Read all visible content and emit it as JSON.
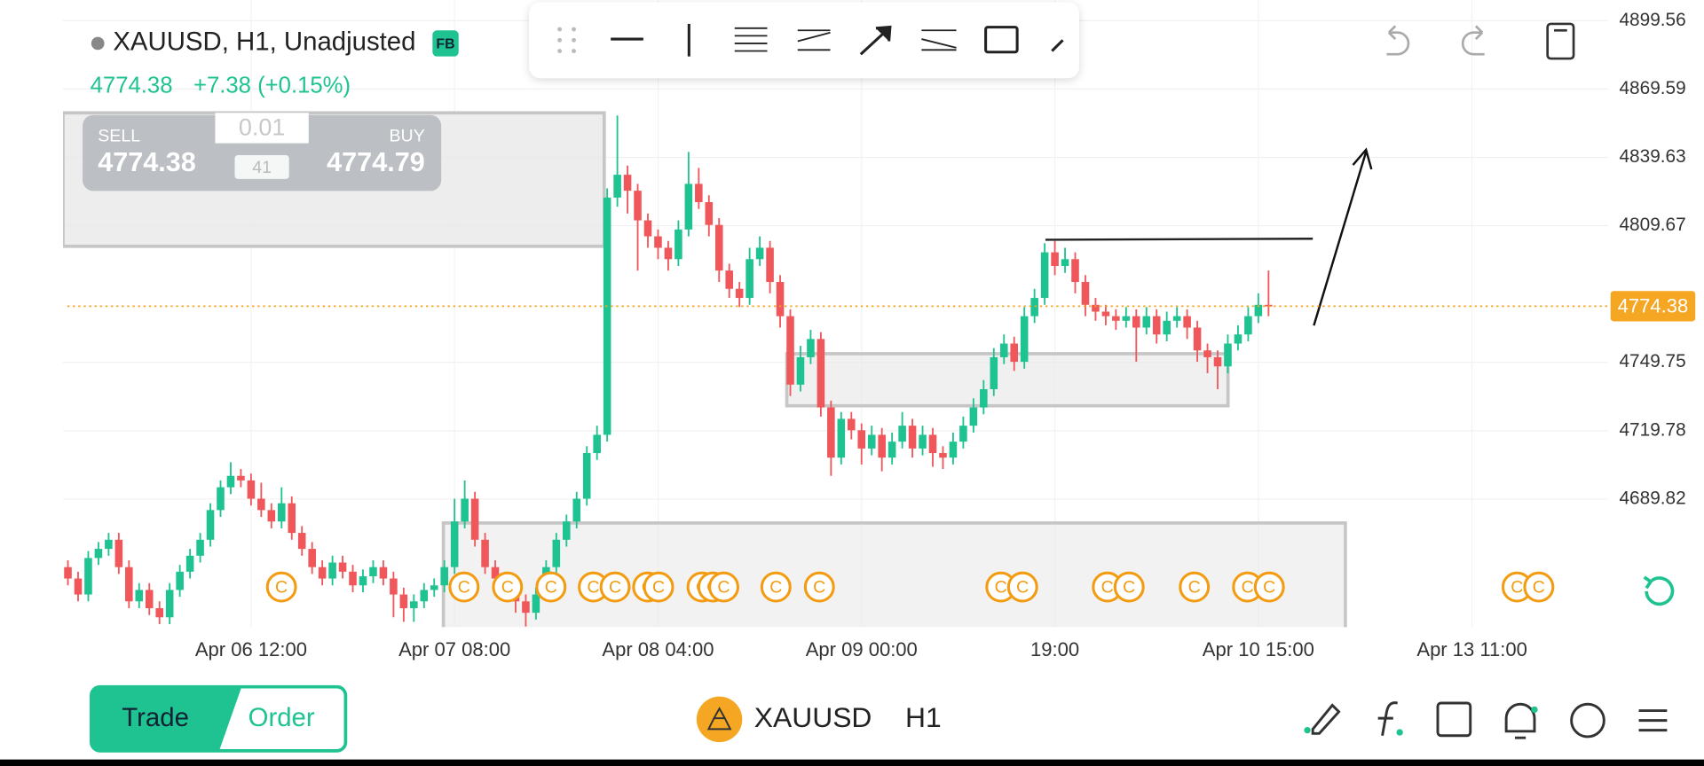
{
  "header": {
    "symbol_line": "XAUUSD, H1, Unadjusted",
    "badge": "FB",
    "price": "4774.38",
    "change": "+7.38 (+0.15%)"
  },
  "trade_panel": {
    "sell_label": "SELL",
    "sell_price": "4774.38",
    "volume": "0.01",
    "spread": "41",
    "buy_label": "BUY",
    "buy_price": "4774.79"
  },
  "chart_data": {
    "type": "candlestick",
    "candles": [
      [
        4660,
        4663,
        4652,
        4655
      ],
      [
        4655,
        4658,
        4645,
        4648
      ],
      [
        4648,
        4667,
        4645,
        4664
      ],
      [
        4664,
        4671,
        4661,
        4668
      ],
      [
        4668,
        4675,
        4665,
        4672
      ],
      [
        4672,
        4675,
        4657,
        4660
      ],
      [
        4660,
        4663,
        4642,
        4645
      ],
      [
        4645,
        4653,
        4642,
        4650
      ],
      [
        4650,
        4653,
        4639,
        4642
      ],
      [
        4642,
        4645,
        4635,
        4638
      ],
      [
        4638,
        4653,
        4635,
        4650
      ],
      [
        4650,
        4661,
        4647,
        4658
      ],
      [
        4658,
        4668,
        4655,
        4665
      ],
      [
        4665,
        4675,
        4662,
        4672
      ],
      [
        4672,
        4688,
        4669,
        4685
      ],
      [
        4685,
        4698,
        4682,
        4695
      ],
      [
        4695,
        4706,
        4692,
        4700
      ],
      [
        4700,
        4703,
        4695,
        4698
      ],
      [
        4698,
        4701,
        4687,
        4690
      ],
      [
        4690,
        4697,
        4682,
        4685
      ],
      [
        4685,
        4688,
        4677,
        4680
      ],
      [
        4680,
        4695,
        4677,
        4688
      ],
      [
        4688,
        4691,
        4672,
        4675
      ],
      [
        4675,
        4678,
        4665,
        4668
      ],
      [
        4668,
        4671,
        4657,
        4660
      ],
      [
        4660,
        4663,
        4652,
        4655
      ],
      [
        4655,
        4665,
        4652,
        4662
      ],
      [
        4662,
        4665,
        4655,
        4658
      ],
      [
        4658,
        4661,
        4649,
        4652
      ],
      [
        4652,
        4659,
        4649,
        4656
      ],
      [
        4656,
        4663,
        4653,
        4660
      ],
      [
        4660,
        4663,
        4652,
        4655
      ],
      [
        4655,
        4658,
        4638,
        4648
      ],
      [
        4648,
        4651,
        4636,
        4642
      ],
      [
        4642,
        4648,
        4636,
        4645
      ],
      [
        4645,
        4653,
        4642,
        4650
      ],
      [
        4650,
        4655,
        4647,
        4652
      ],
      [
        4652,
        4663,
        4649,
        4660
      ],
      [
        4660,
        4690,
        4657,
        4680
      ],
      [
        4680,
        4698,
        4677,
        4690
      ],
      [
        4690,
        4693,
        4669,
        4672
      ],
      [
        4672,
        4675,
        4657,
        4660
      ],
      [
        4660,
        4663,
        4652,
        4655
      ],
      [
        4655,
        4658,
        4647,
        4650
      ],
      [
        4650,
        4653,
        4640,
        4645
      ],
      [
        4645,
        4648,
        4634,
        4640
      ],
      [
        4640,
        4651,
        4637,
        4648
      ],
      [
        4648,
        4663,
        4645,
        4660
      ],
      [
        4660,
        4675,
        4657,
        4672
      ],
      [
        4672,
        4683,
        4669,
        4680
      ],
      [
        4680,
        4693,
        4677,
        4690
      ],
      [
        4690,
        4713,
        4687,
        4710
      ],
      [
        4710,
        4722,
        4707,
        4718
      ],
      [
        4718,
        4826,
        4715,
        4822
      ],
      [
        4822,
        4858,
        4818,
        4832
      ],
      [
        4832,
        4836,
        4815,
        4825
      ],
      [
        4825,
        4828,
        4790,
        4812
      ],
      [
        4812,
        4815,
        4800,
        4805
      ],
      [
        4805,
        4808,
        4795,
        4800
      ],
      [
        4800,
        4803,
        4790,
        4795
      ],
      [
        4795,
        4812,
        4792,
        4808
      ],
      [
        4808,
        4842,
        4805,
        4828
      ],
      [
        4828,
        4835,
        4817,
        4820
      ],
      [
        4820,
        4823,
        4805,
        4810
      ],
      [
        4810,
        4813,
        4785,
        4790
      ],
      [
        4790,
        4793,
        4778,
        4782
      ],
      [
        4782,
        4785,
        4774,
        4778
      ],
      [
        4778,
        4800,
        4775,
        4795
      ],
      [
        4795,
        4805,
        4792,
        4800
      ],
      [
        4800,
        4803,
        4780,
        4785
      ],
      [
        4785,
        4788,
        4765,
        4770
      ],
      [
        4770,
        4773,
        4735,
        4740
      ],
      [
        4740,
        4757,
        4737,
        4752
      ],
      [
        4752,
        4764,
        4749,
        4760
      ],
      [
        4760,
        4763,
        4726,
        4730
      ],
      [
        4730,
        4733,
        4700,
        4708
      ],
      [
        4708,
        4728,
        4705,
        4725
      ],
      [
        4725,
        4728,
        4716,
        4720
      ],
      [
        4720,
        4723,
        4705,
        4712
      ],
      [
        4712,
        4722,
        4709,
        4718
      ],
      [
        4718,
        4721,
        4702,
        4708
      ],
      [
        4708,
        4719,
        4705,
        4715
      ],
      [
        4715,
        4728,
        4712,
        4722
      ],
      [
        4722,
        4725,
        4708,
        4712
      ],
      [
        4712,
        4722,
        4709,
        4718
      ],
      [
        4718,
        4721,
        4704,
        4710
      ],
      [
        4710,
        4713,
        4703,
        4708
      ],
      [
        4708,
        4719,
        4705,
        4715
      ],
      [
        4715,
        4726,
        4712,
        4722
      ],
      [
        4722,
        4734,
        4719,
        4730
      ],
      [
        4730,
        4742,
        4727,
        4738
      ],
      [
        4738,
        4756,
        4735,
        4752
      ],
      [
        4752,
        4762,
        4749,
        4758
      ],
      [
        4758,
        4761,
        4746,
        4750
      ],
      [
        4750,
        4774,
        4747,
        4770
      ],
      [
        4770,
        4782,
        4767,
        4778
      ],
      [
        4778,
        4802,
        4775,
        4798
      ],
      [
        4798,
        4803,
        4788,
        4792
      ],
      [
        4792,
        4800,
        4789,
        4795
      ],
      [
        4795,
        4798,
        4780,
        4785
      ],
      [
        4785,
        4788,
        4770,
        4775
      ],
      [
        4775,
        4778,
        4768,
        4772
      ],
      [
        4772,
        4775,
        4766,
        4770
      ],
      [
        4770,
        4773,
        4764,
        4768
      ],
      [
        4768,
        4774,
        4765,
        4770
      ],
      [
        4770,
        4773,
        4750,
        4765
      ],
      [
        4765,
        4774,
        4762,
        4770
      ],
      [
        4770,
        4773,
        4758,
        4762
      ],
      [
        4762,
        4772,
        4759,
        4768
      ],
      [
        4768,
        4774,
        4765,
        4770
      ],
      [
        4770,
        4773,
        4760,
        4765
      ],
      [
        4765,
        4768,
        4750,
        4755
      ],
      [
        4755,
        4758,
        4745,
        4752
      ],
      [
        4752,
        4755,
        4738,
        4748
      ],
      [
        4748,
        4762,
        4745,
        4758
      ],
      [
        4758,
        4766,
        4755,
        4762
      ],
      [
        4762,
        4774,
        4759,
        4770
      ],
      [
        4770,
        4780,
        4767,
        4775
      ],
      [
        4775,
        4790,
        4770,
        4774.38
      ]
    ],
    "up_color": "#1ec391",
    "down_color": "#f0575a",
    "ylim": [
      4633.7,
      4908.6
    ],
    "yticks": [
      4899.56,
      4869.59,
      4839.63,
      4809.67,
      4749.75,
      4719.78,
      4689.82
    ],
    "xlim": [
      0,
      151.4
    ],
    "xticks": [
      {
        "value": 18,
        "label": "Apr 06 12:00"
      },
      {
        "value": 38,
        "label": "Apr 07 08:00"
      },
      {
        "value": 58,
        "label": "Apr 08 04:00"
      },
      {
        "value": 78,
        "label": "Apr 09 00:00"
      },
      {
        "value": 97,
        "label": "19:00"
      },
      {
        "value": 117,
        "label": "Apr 10 15:00"
      },
      {
        "value": 138,
        "label": "Apr 13 11:00"
      }
    ],
    "grid": true,
    "last_price": 4774.38,
    "last_price_color": "#f5a623",
    "event_marker_label": "C"
  },
  "footer": {
    "trade_tab": "Trade",
    "order_tab": "Order",
    "symbol": "XAUUSD",
    "timeframe": "H1"
  }
}
